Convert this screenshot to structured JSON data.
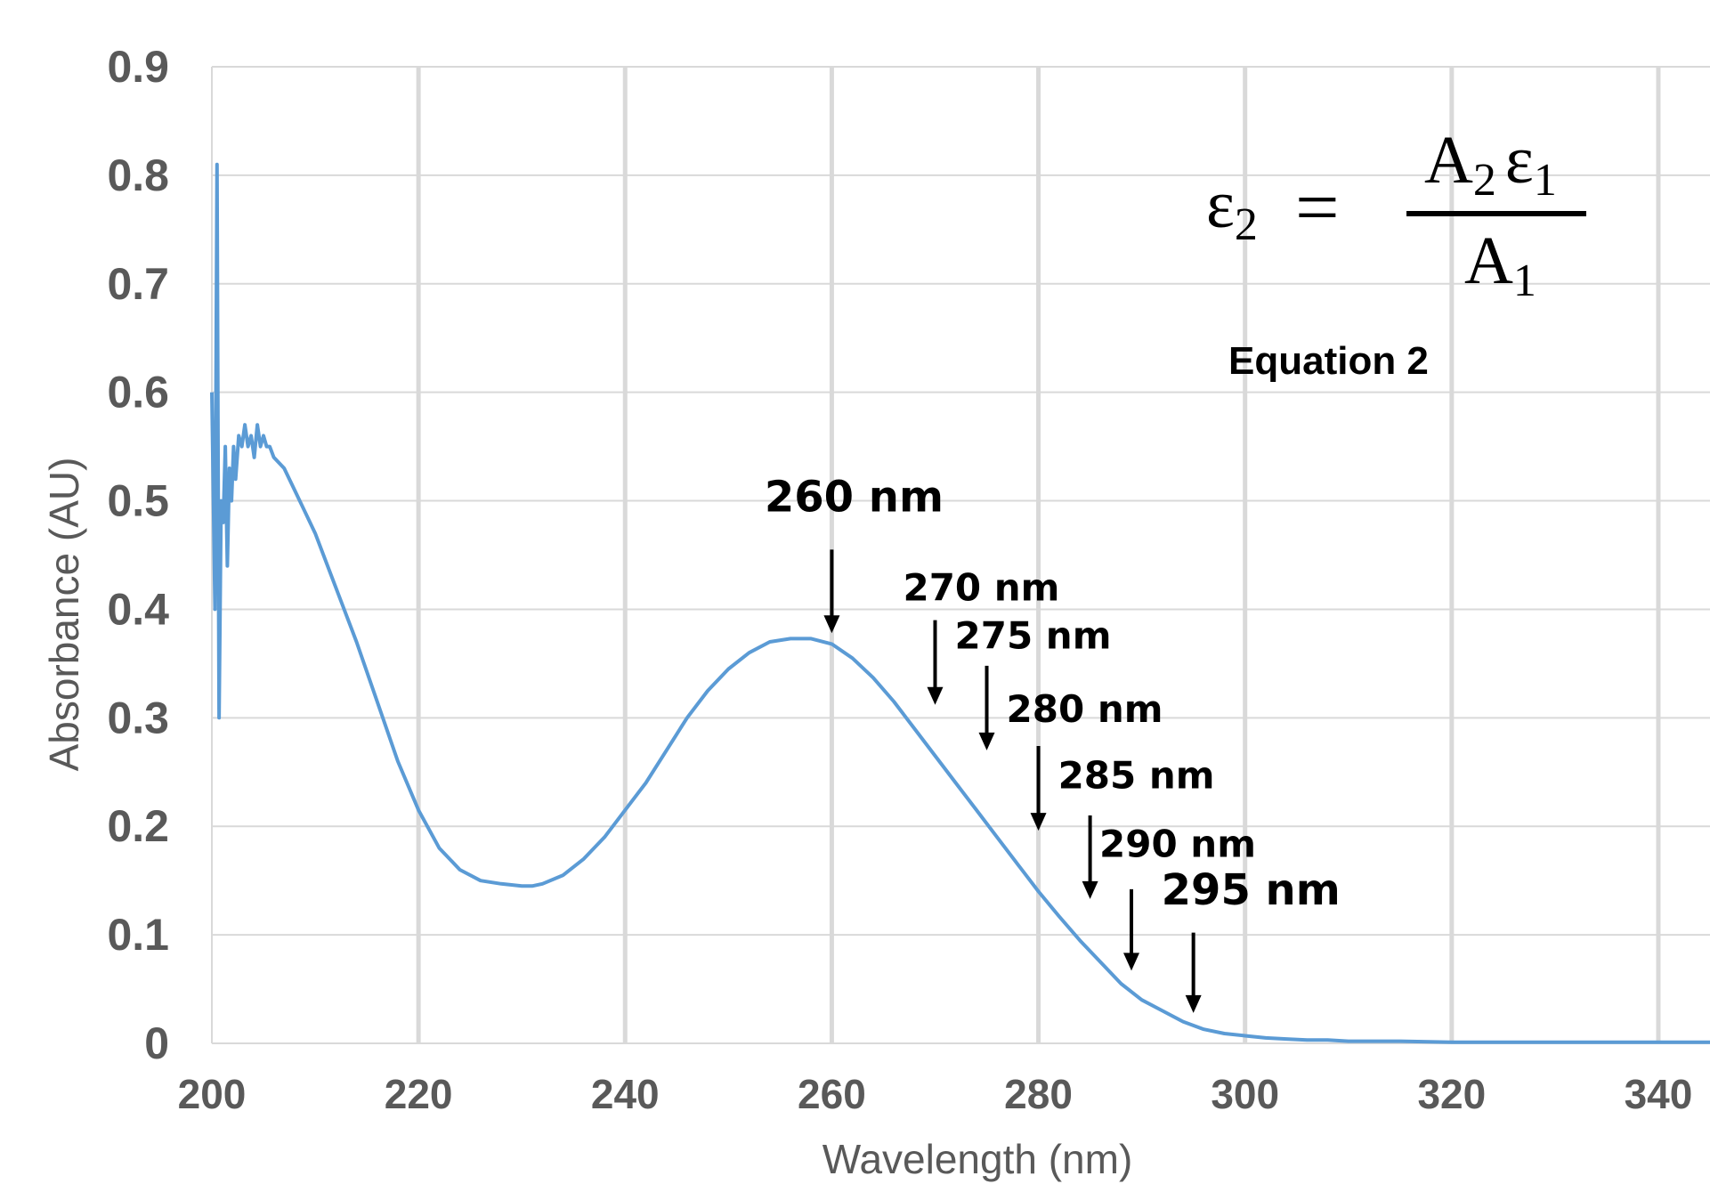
{
  "chart_data": {
    "type": "line",
    "xlabel": "Wavelength (nm)",
    "ylabel": "Absorbance (AU)",
    "xlim": [
      200,
      345
    ],
    "ylim": [
      0,
      0.9
    ],
    "x_ticks": [
      200,
      220,
      240,
      260,
      280,
      300,
      320,
      340
    ],
    "y_ticks": [
      0,
      0.1,
      0.2,
      0.3,
      0.4,
      0.5,
      0.6,
      0.7,
      0.8,
      0.9
    ],
    "grid": {
      "vertical": true,
      "horizontal": true
    },
    "series": [
      {
        "color": "#5b9bd5",
        "x": [
          200,
          200.3,
          200.5,
          200.7,
          200.9,
          201.1,
          201.3,
          201.5,
          201.7,
          201.9,
          202.1,
          202.3,
          202.6,
          202.9,
          203.2,
          203.5,
          203.8,
          204.1,
          204.4,
          204.7,
          205,
          205.3,
          205.6,
          206,
          206.5,
          207,
          208,
          209,
          210,
          212,
          214,
          216,
          218,
          220,
          222,
          224,
          226,
          228,
          230,
          231,
          232,
          234,
          236,
          238,
          240,
          242,
          244,
          246,
          248,
          250,
          252,
          254,
          256,
          258,
          260,
          262,
          264,
          266,
          268,
          270,
          272,
          274,
          276,
          278,
          280,
          282,
          284,
          286,
          288,
          290,
          292,
          294,
          296,
          298,
          300,
          302,
          304,
          306,
          308,
          310,
          315,
          320,
          325,
          330,
          335,
          340,
          345
        ],
        "y": [
          0.6,
          0.4,
          0.81,
          0.3,
          0.5,
          0.48,
          0.55,
          0.44,
          0.53,
          0.5,
          0.55,
          0.52,
          0.56,
          0.55,
          0.57,
          0.55,
          0.56,
          0.54,
          0.57,
          0.55,
          0.56,
          0.55,
          0.55,
          0.54,
          0.535,
          0.53,
          0.51,
          0.49,
          0.47,
          0.42,
          0.37,
          0.315,
          0.26,
          0.215,
          0.18,
          0.16,
          0.15,
          0.147,
          0.145,
          0.145,
          0.147,
          0.155,
          0.17,
          0.19,
          0.215,
          0.24,
          0.27,
          0.3,
          0.325,
          0.345,
          0.36,
          0.37,
          0.373,
          0.373,
          0.368,
          0.355,
          0.337,
          0.315,
          0.29,
          0.265,
          0.24,
          0.215,
          0.19,
          0.165,
          0.14,
          0.117,
          0.095,
          0.075,
          0.055,
          0.04,
          0.03,
          0.02,
          0.013,
          0.009,
          0.007,
          0.005,
          0.004,
          0.003,
          0.003,
          0.002,
          0.002,
          0.001,
          0.001,
          0.001,
          0.001,
          0.001,
          0.001
        ]
      }
    ],
    "annotations": [
      {
        "label": "260 nm",
        "x": 260,
        "tip_y": 0.378,
        "tail_y": 0.455,
        "label_y": 0.49
      },
      {
        "label": "270 nm",
        "x": 270,
        "tip_y": 0.312,
        "tail_y": 0.39,
        "label_y": 0.408
      },
      {
        "label": "275 nm",
        "x": 275,
        "tip_y": 0.27,
        "tail_y": 0.348,
        "label_y": 0.364
      },
      {
        "label": "280 nm",
        "x": 280,
        "tip_y": 0.196,
        "tail_y": 0.274,
        "label_y": 0.296
      },
      {
        "label": "285 nm",
        "x": 285,
        "tip_y": 0.133,
        "tail_y": 0.21,
        "label_y": 0.235
      },
      {
        "label": "290 nm",
        "x": 289,
        "tip_y": 0.067,
        "tail_y": 0.142,
        "label_y": 0.172
      },
      {
        "label": "295 nm",
        "x": 295,
        "tip_y": 0.028,
        "tail_y": 0.102,
        "label_y": 0.128
      }
    ],
    "equation": {
      "lhs_symbol": "ε",
      "lhs_sub": "2",
      "equals": "=",
      "num_a": "A",
      "num_a_sub": "2",
      "num_b": "ε",
      "num_b_sub": "1",
      "den": "A",
      "den_sub": "1",
      "caption": "Equation 2"
    }
  }
}
